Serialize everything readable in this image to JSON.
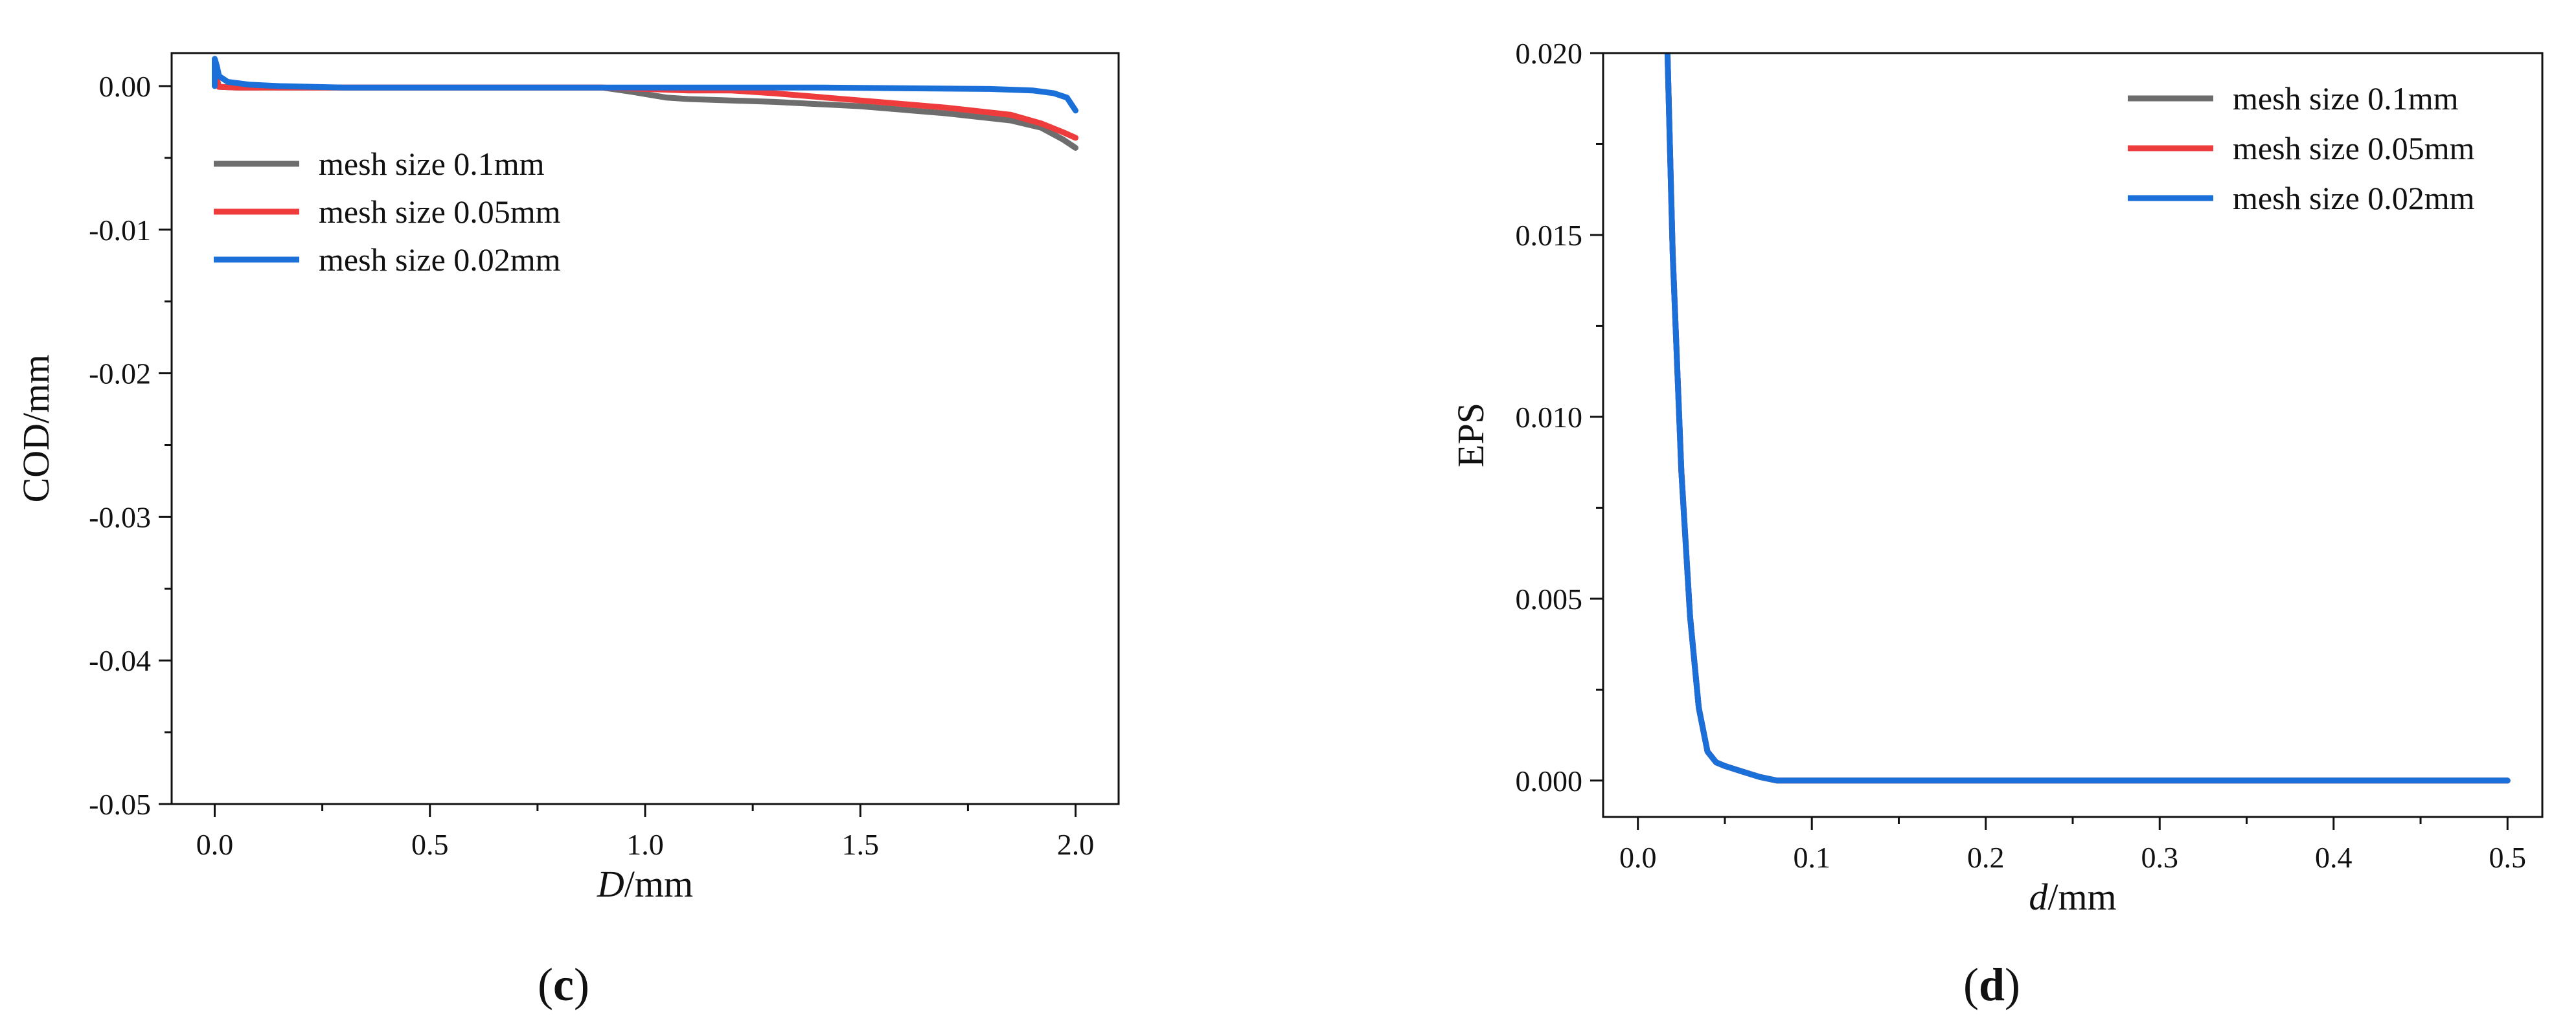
{
  "chart_data": [
    {
      "type": "line",
      "panel": "c",
      "xlabel_italic": "D",
      "xlabel_unit": "/mm",
      "ylabel": "COD/mm",
      "xlim": [
        -0.1,
        2.1
      ],
      "ylim": [
        -0.05,
        0.0023
      ],
      "xticks": [
        0.0,
        0.5,
        1.0,
        1.5,
        2.0
      ],
      "xtick_labels": [
        "0.0",
        "0.5",
        "1.0",
        "1.5",
        "2.0"
      ],
      "yticks": [
        0.0,
        -0.01,
        -0.02,
        -0.03,
        -0.04,
        -0.05
      ],
      "ytick_labels": [
        "0.00",
        "-0.01",
        "-0.02",
        "-0.03",
        "-0.04",
        "-0.05"
      ],
      "legend_position": "upper-left",
      "grid": false,
      "series": [
        {
          "name": "mesh size 0.1mm",
          "color": "#6d6d6d",
          "x": [
            0.0,
            0.01,
            0.05,
            0.15,
            0.3,
            0.6,
            0.9,
            0.97,
            1.05,
            1.1,
            1.3,
            1.5,
            1.7,
            1.85,
            1.92,
            1.97,
            2.0
          ],
          "y": [
            0.001,
            -5e-05,
            -0.0001,
            -0.0001,
            -0.0001,
            -0.0001,
            -0.0001,
            -0.0004,
            -0.0008,
            -0.0009,
            -0.0011,
            -0.0014,
            -0.0019,
            -0.0024,
            -0.0029,
            -0.0037,
            -0.0043
          ]
        },
        {
          "name": "mesh size 0.05mm",
          "color": "#ee3b3b",
          "x": [
            0.0,
            0.01,
            0.05,
            0.15,
            0.3,
            0.6,
            0.9,
            1.0,
            1.1,
            1.2,
            1.3,
            1.5,
            1.7,
            1.85,
            1.92,
            1.97,
            2.0
          ],
          "y": [
            0.001,
            -5e-05,
            -0.0001,
            -0.0001,
            -0.0001,
            -0.0001,
            -0.0001,
            -0.0002,
            -0.0003,
            -0.0003,
            -0.0005,
            -0.001,
            -0.0015,
            -0.002,
            -0.0026,
            -0.0032,
            -0.0036
          ]
        },
        {
          "name": "mesh size 0.02mm",
          "color": "#1a6fd8",
          "x": [
            0.0,
            0.0,
            0.005,
            0.01,
            0.03,
            0.08,
            0.15,
            0.3,
            0.6,
            1.0,
            1.4,
            1.8,
            1.9,
            1.95,
            1.98,
            2.0
          ],
          "y": [
            0.0,
            0.0019,
            0.0014,
            0.0007,
            0.0003,
            0.0001,
            0.0,
            -0.0001,
            -0.0001,
            -0.0001,
            -0.0001,
            -0.0002,
            -0.0003,
            -0.0005,
            -0.0008,
            -0.0017
          ]
        }
      ]
    },
    {
      "type": "line",
      "panel": "d",
      "xlabel_italic": "d",
      "xlabel_unit": "/mm",
      "ylabel": "EPS",
      "xlim": [
        -0.02,
        0.52
      ],
      "ylim": [
        -0.001,
        0.02
      ],
      "xticks": [
        0.0,
        0.1,
        0.2,
        0.3,
        0.4,
        0.5
      ],
      "xtick_labels": [
        "0.0",
        "0.1",
        "0.2",
        "0.3",
        "0.4",
        "0.5"
      ],
      "yticks": [
        0.0,
        0.005,
        0.01,
        0.015,
        0.02
      ],
      "ytick_labels": [
        "0.000",
        "0.005",
        "0.010",
        "0.015",
        "0.020"
      ],
      "legend_position": "upper-right",
      "grid": false,
      "series": [
        {
          "name": "mesh size 0.1mm",
          "color": "#6d6d6d",
          "x": [
            0.017,
            0.02,
            0.025,
            0.03,
            0.035,
            0.04,
            0.045,
            0.05,
            0.06,
            0.07,
            0.08,
            0.1,
            0.2,
            0.3,
            0.4,
            0.5
          ],
          "y": [
            0.02,
            0.0145,
            0.0085,
            0.0045,
            0.002,
            0.0008,
            0.0005,
            0.0004,
            0.00025,
            0.0001,
            0.0,
            0.0,
            0.0,
            0.0,
            0.0,
            0.0
          ]
        },
        {
          "name": "mesh size 0.05mm",
          "color": "#ee3b3b",
          "x": [
            0.017,
            0.02,
            0.025,
            0.03,
            0.035,
            0.04,
            0.045,
            0.05,
            0.06,
            0.07,
            0.08,
            0.1,
            0.2,
            0.3,
            0.4,
            0.5
          ],
          "y": [
            0.02,
            0.0145,
            0.0085,
            0.0045,
            0.002,
            0.0008,
            0.0005,
            0.0004,
            0.00025,
            0.0001,
            0.0,
            0.0,
            0.0,
            0.0,
            0.0,
            0.0
          ]
        },
        {
          "name": "mesh size 0.02mm",
          "color": "#1a6fd8",
          "x": [
            0.017,
            0.02,
            0.025,
            0.03,
            0.035,
            0.04,
            0.045,
            0.05,
            0.06,
            0.07,
            0.08,
            0.1,
            0.2,
            0.3,
            0.4,
            0.5
          ],
          "y": [
            0.02,
            0.0145,
            0.0085,
            0.0045,
            0.002,
            0.0008,
            0.0005,
            0.0004,
            0.00025,
            0.0001,
            0.0,
            0.0,
            0.0,
            0.0,
            0.0,
            0.0
          ]
        }
      ]
    }
  ]
}
